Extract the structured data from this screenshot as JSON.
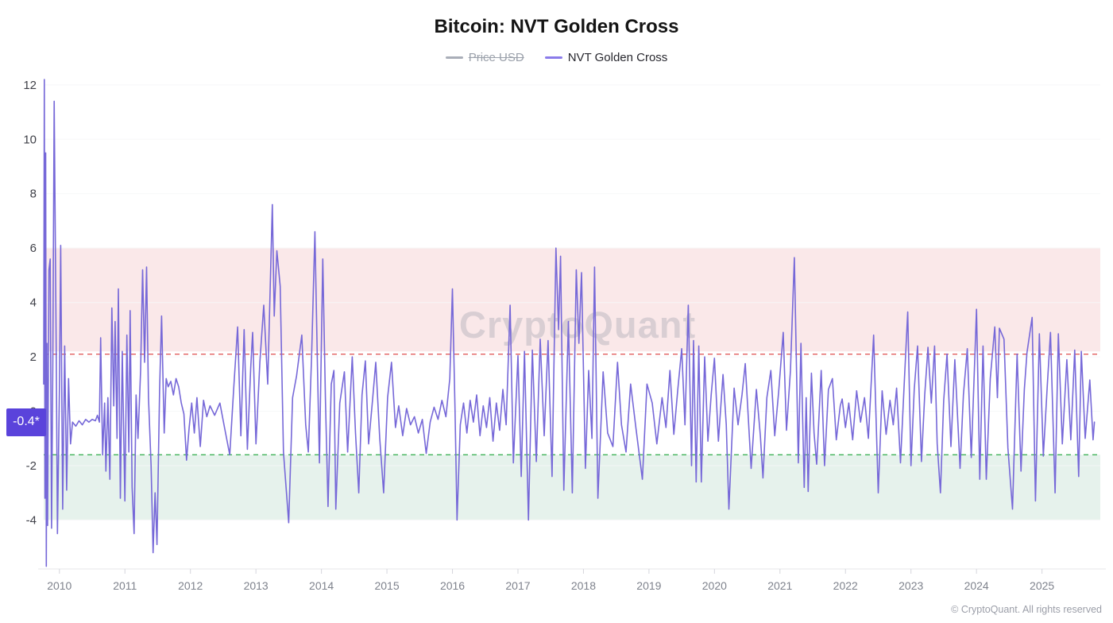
{
  "title": "Bitcoin: NVT Golden Cross",
  "legend": [
    {
      "label": "Price USD",
      "color": "#a9aeb8",
      "disabled": true
    },
    {
      "label": "NVT Golden Cross",
      "color": "#8a7bea",
      "disabled": false
    }
  ],
  "watermark": "CryptoQuant",
  "copyright": "© CryptoQuant. All rights reserved",
  "current_value_label": "-0.4*",
  "chart_data": {
    "type": "line",
    "title": "Bitcoin: NVT Golden Cross",
    "series_name": "NVT Golden Cross",
    "line_color": "#7668d8",
    "xlim": [
      2009.76,
      2025.89
    ],
    "ylim": [
      -5.8,
      12.2
    ],
    "y_ticks": [
      12,
      10,
      8,
      6,
      4,
      2,
      0,
      -2,
      -4
    ],
    "x_ticks": [
      2010,
      2011,
      2012,
      2013,
      2014,
      2015,
      2016,
      2017,
      2018,
      2019,
      2020,
      2021,
      2022,
      2023,
      2024,
      2025
    ],
    "grid": true,
    "legend_position": "top",
    "zones": [
      {
        "name": "overbought-zone",
        "from": 2.2,
        "to": 6.0,
        "color": "#fae8e9"
      },
      {
        "name": "oversold-zone",
        "from": -4.0,
        "to": -1.6,
        "color": "#e6f2ec"
      }
    ],
    "thresholds": [
      {
        "name": "upper-threshold",
        "value": 2.1,
        "color": "#e25c5c"
      },
      {
        "name": "lower-threshold",
        "value": -1.6,
        "color": "#3eb257"
      }
    ],
    "last_value": -0.4,
    "points": [
      [
        2009.76,
        1.0
      ],
      [
        2009.77,
        12.2
      ],
      [
        2009.78,
        -3.2
      ],
      [
        2009.79,
        9.5
      ],
      [
        2009.8,
        -5.7
      ],
      [
        2009.81,
        2.5
      ],
      [
        2009.82,
        -4.2
      ],
      [
        2009.84,
        5.2
      ],
      [
        2009.86,
        5.6
      ],
      [
        2009.88,
        -4.3
      ],
      [
        2009.9,
        1.8
      ],
      [
        2009.92,
        11.4
      ],
      [
        2009.95,
        2.5
      ],
      [
        2009.97,
        -4.5
      ],
      [
        2010.0,
        0.8
      ],
      [
        2010.02,
        6.1
      ],
      [
        2010.05,
        -3.6
      ],
      [
        2010.08,
        2.4
      ],
      [
        2010.11,
        -2.9
      ],
      [
        2010.14,
        1.2
      ],
      [
        2010.17,
        -1.2
      ],
      [
        2010.2,
        -0.4
      ],
      [
        2010.25,
        -0.55
      ],
      [
        2010.3,
        -0.35
      ],
      [
        2010.35,
        -0.5
      ],
      [
        2010.4,
        -0.3
      ],
      [
        2010.45,
        -0.4
      ],
      [
        2010.5,
        -0.3
      ],
      [
        2010.55,
        -0.35
      ],
      [
        2010.58,
        -0.15
      ],
      [
        2010.61,
        -0.4
      ],
      [
        2010.63,
        2.7
      ],
      [
        2010.66,
        -1.6
      ],
      [
        2010.69,
        0.3
      ],
      [
        2010.71,
        -2.2
      ],
      [
        2010.74,
        0.5
      ],
      [
        2010.77,
        -2.5
      ],
      [
        2010.8,
        3.8
      ],
      [
        2010.83,
        0.2
      ],
      [
        2010.85,
        3.3
      ],
      [
        2010.88,
        -1.0
      ],
      [
        2010.9,
        4.5
      ],
      [
        2010.93,
        -3.2
      ],
      [
        2010.96,
        2.2
      ],
      [
        2011.0,
        -3.3
      ],
      [
        2011.03,
        2.8
      ],
      [
        2011.06,
        -1.5
      ],
      [
        2011.08,
        3.7
      ],
      [
        2011.11,
        -2.8
      ],
      [
        2011.14,
        -4.5
      ],
      [
        2011.17,
        0.6
      ],
      [
        2011.2,
        -1.0
      ],
      [
        2011.24,
        1.5
      ],
      [
        2011.27,
        5.2
      ],
      [
        2011.3,
        1.8
      ],
      [
        2011.33,
        5.3
      ],
      [
        2011.36,
        0.5
      ],
      [
        2011.4,
        -2.0
      ],
      [
        2011.43,
        -5.2
      ],
      [
        2011.46,
        -3.0
      ],
      [
        2011.49,
        -4.9
      ],
      [
        2011.53,
        0.8
      ],
      [
        2011.56,
        3.5
      ],
      [
        2011.6,
        -0.8
      ],
      [
        2011.63,
        1.2
      ],
      [
        2011.66,
        0.9
      ],
      [
        2011.7,
        1.1
      ],
      [
        2011.74,
        0.6
      ],
      [
        2011.78,
        1.2
      ],
      [
        2011.82,
        0.9
      ],
      [
        2011.86,
        0.3
      ],
      [
        2011.9,
        -0.1
      ],
      [
        2011.94,
        -1.8
      ],
      [
        2011.98,
        -0.6
      ],
      [
        2012.02,
        0.3
      ],
      [
        2012.06,
        -0.8
      ],
      [
        2012.1,
        0.5
      ],
      [
        2012.15,
        -1.3
      ],
      [
        2012.2,
        0.4
      ],
      [
        2012.25,
        -0.2
      ],
      [
        2012.3,
        0.2
      ],
      [
        2012.37,
        -0.15
      ],
      [
        2012.45,
        0.3
      ],
      [
        2012.52,
        -0.6
      ],
      [
        2012.6,
        -1.6
      ],
      [
        2012.66,
        0.8
      ],
      [
        2012.72,
        3.1
      ],
      [
        2012.77,
        -0.9
      ],
      [
        2012.82,
        3.0
      ],
      [
        2012.87,
        -1.4
      ],
      [
        2012.92,
        1.6
      ],
      [
        2012.95,
        2.9
      ],
      [
        2013.0,
        -1.2
      ],
      [
        2013.06,
        1.8
      ],
      [
        2013.12,
        3.9
      ],
      [
        2013.18,
        1.0
      ],
      [
        2013.25,
        7.6
      ],
      [
        2013.28,
        3.5
      ],
      [
        2013.32,
        5.9
      ],
      [
        2013.37,
        4.6
      ],
      [
        2013.42,
        -1.5
      ],
      [
        2013.5,
        -4.1
      ],
      [
        2013.56,
        0.5
      ],
      [
        2013.62,
        1.3
      ],
      [
        2013.7,
        2.8
      ],
      [
        2013.76,
        -0.5
      ],
      [
        2013.8,
        -1.5
      ],
      [
        2013.85,
        2.0
      ],
      [
        2013.9,
        6.6
      ],
      [
        2013.94,
        1.5
      ],
      [
        2013.97,
        -1.9
      ],
      [
        2014.02,
        5.6
      ],
      [
        2014.06,
        0.5
      ],
      [
        2014.1,
        -3.5
      ],
      [
        2014.15,
        1.0
      ],
      [
        2014.19,
        1.5
      ],
      [
        2014.22,
        -3.6
      ],
      [
        2014.28,
        0.3
      ],
      [
        2014.35,
        1.45
      ],
      [
        2014.4,
        -1.5
      ],
      [
        2014.47,
        2.0
      ],
      [
        2014.52,
        -0.8
      ],
      [
        2014.57,
        -3.0
      ],
      [
        2014.62,
        0.6
      ],
      [
        2014.67,
        1.85
      ],
      [
        2014.72,
        -1.2
      ],
      [
        2014.78,
        0.4
      ],
      [
        2014.83,
        1.8
      ],
      [
        2014.89,
        -1.0
      ],
      [
        2014.95,
        -3.0
      ],
      [
        2015.01,
        0.5
      ],
      [
        2015.07,
        1.8
      ],
      [
        2015.13,
        -0.6
      ],
      [
        2015.18,
        0.2
      ],
      [
        2015.24,
        -0.9
      ],
      [
        2015.3,
        0.1
      ],
      [
        2015.36,
        -0.5
      ],
      [
        2015.42,
        -0.2
      ],
      [
        2015.48,
        -0.8
      ],
      [
        2015.54,
        -0.3
      ],
      [
        2015.6,
        -1.55
      ],
      [
        2015.66,
        -0.4
      ],
      [
        2015.72,
        0.15
      ],
      [
        2015.78,
        -0.3
      ],
      [
        2015.84,
        0.4
      ],
      [
        2015.9,
        -0.2
      ],
      [
        2015.96,
        1.2
      ],
      [
        2016.0,
        4.5
      ],
      [
        2016.04,
        0.0
      ],
      [
        2016.07,
        -4.0
      ],
      [
        2016.12,
        -0.5
      ],
      [
        2016.17,
        0.3
      ],
      [
        2016.22,
        -0.8
      ],
      [
        2016.27,
        0.4
      ],
      [
        2016.32,
        -0.4
      ],
      [
        2016.37,
        0.6
      ],
      [
        2016.42,
        -0.9
      ],
      [
        2016.47,
        0.2
      ],
      [
        2016.52,
        -0.6
      ],
      [
        2016.57,
        0.5
      ],
      [
        2016.62,
        -1.1
      ],
      [
        2016.67,
        0.3
      ],
      [
        2016.72,
        -0.7
      ],
      [
        2016.77,
        0.8
      ],
      [
        2016.82,
        -0.5
      ],
      [
        2016.88,
        3.9
      ],
      [
        2016.93,
        -1.9
      ],
      [
        2017.0,
        2.05
      ],
      [
        2017.05,
        -2.4
      ],
      [
        2017.1,
        2.2
      ],
      [
        2017.16,
        -4.0
      ],
      [
        2017.22,
        2.25
      ],
      [
        2017.28,
        -1.85
      ],
      [
        2017.34,
        2.65
      ],
      [
        2017.4,
        -0.9
      ],
      [
        2017.46,
        2.6
      ],
      [
        2017.52,
        -2.4
      ],
      [
        2017.58,
        6.0
      ],
      [
        2017.62,
        3.0
      ],
      [
        2017.65,
        5.7
      ],
      [
        2017.7,
        -2.9
      ],
      [
        2017.77,
        3.3
      ],
      [
        2017.83,
        -3.0
      ],
      [
        2017.89,
        5.2
      ],
      [
        2017.93,
        2.5
      ],
      [
        2017.97,
        5.1
      ],
      [
        2018.03,
        -2.1
      ],
      [
        2018.08,
        1.5
      ],
      [
        2018.13,
        -1.0
      ],
      [
        2018.17,
        5.3
      ],
      [
        2018.22,
        -3.2
      ],
      [
        2018.3,
        1.45
      ],
      [
        2018.37,
        -0.8
      ],
      [
        2018.45,
        -1.3
      ],
      [
        2018.52,
        1.8
      ],
      [
        2018.58,
        -0.5
      ],
      [
        2018.65,
        -1.5
      ],
      [
        2018.72,
        1.0
      ],
      [
        2018.8,
        -0.6
      ],
      [
        2018.9,
        -2.5
      ],
      [
        2018.97,
        1.0
      ],
      [
        2019.05,
        0.3
      ],
      [
        2019.12,
        -1.2
      ],
      [
        2019.2,
        0.5
      ],
      [
        2019.26,
        -0.6
      ],
      [
        2019.32,
        1.5
      ],
      [
        2019.38,
        -0.85
      ],
      [
        2019.44,
        0.8
      ],
      [
        2019.5,
        2.3
      ],
      [
        2019.55,
        -0.5
      ],
      [
        2019.6,
        3.9
      ],
      [
        2019.65,
        -2.0
      ],
      [
        2019.68,
        2.6
      ],
      [
        2019.72,
        -2.6
      ],
      [
        2019.76,
        2.4
      ],
      [
        2019.8,
        -2.6
      ],
      [
        2019.85,
        2.0
      ],
      [
        2019.9,
        -1.1
      ],
      [
        2019.95,
        0.6
      ],
      [
        2020.0,
        1.95
      ],
      [
        2020.06,
        -1.1
      ],
      [
        2020.13,
        1.35
      ],
      [
        2020.18,
        -0.5
      ],
      [
        2020.22,
        -3.6
      ],
      [
        2020.3,
        0.85
      ],
      [
        2020.36,
        -0.5
      ],
      [
        2020.42,
        0.6
      ],
      [
        2020.47,
        1.75
      ],
      [
        2020.56,
        -2.1
      ],
      [
        2020.64,
        0.8
      ],
      [
        2020.7,
        -0.9
      ],
      [
        2020.74,
        -2.45
      ],
      [
        2020.8,
        0.5
      ],
      [
        2020.86,
        1.5
      ],
      [
        2020.92,
        -0.9
      ],
      [
        2020.98,
        0.7
      ],
      [
        2021.05,
        2.9
      ],
      [
        2021.1,
        -0.7
      ],
      [
        2021.16,
        1.5
      ],
      [
        2021.22,
        5.65
      ],
      [
        2021.28,
        -1.9
      ],
      [
        2021.32,
        2.5
      ],
      [
        2021.37,
        -2.8
      ],
      [
        2021.4,
        0.5
      ],
      [
        2021.43,
        -2.95
      ],
      [
        2021.48,
        1.4
      ],
      [
        2021.52,
        -0.8
      ],
      [
        2021.56,
        -1.95
      ],
      [
        2021.63,
        1.5
      ],
      [
        2021.68,
        -2.0
      ],
      [
        2021.74,
        0.8
      ],
      [
        2021.8,
        1.2
      ],
      [
        2021.86,
        -1.05
      ],
      [
        2021.92,
        0.2
      ],
      [
        2021.95,
        0.45
      ],
      [
        2022.0,
        -0.6
      ],
      [
        2022.05,
        0.3
      ],
      [
        2022.11,
        -1.05
      ],
      [
        2022.17,
        0.75
      ],
      [
        2022.23,
        -0.4
      ],
      [
        2022.29,
        0.5
      ],
      [
        2022.35,
        -1.0
      ],
      [
        2022.43,
        2.8
      ],
      [
        2022.5,
        -3.0
      ],
      [
        2022.56,
        0.75
      ],
      [
        2022.62,
        -0.85
      ],
      [
        2022.68,
        0.4
      ],
      [
        2022.73,
        -0.5
      ],
      [
        2022.78,
        0.85
      ],
      [
        2022.84,
        -1.9
      ],
      [
        2022.9,
        1.2
      ],
      [
        2022.95,
        3.65
      ],
      [
        2023.0,
        -2.0
      ],
      [
        2023.05,
        0.8
      ],
      [
        2023.1,
        2.4
      ],
      [
        2023.16,
        -1.85
      ],
      [
        2023.21,
        0.6
      ],
      [
        2023.26,
        2.35
      ],
      [
        2023.31,
        0.3
      ],
      [
        2023.36,
        2.4
      ],
      [
        2023.4,
        -1.2
      ],
      [
        2023.45,
        -3.0
      ],
      [
        2023.5,
        0.4
      ],
      [
        2023.55,
        2.1
      ],
      [
        2023.61,
        -1.3
      ],
      [
        2023.67,
        1.9
      ],
      [
        2023.75,
        -2.1
      ],
      [
        2023.8,
        0.6
      ],
      [
        2023.86,
        2.3
      ],
      [
        2023.92,
        -1.7
      ],
      [
        2024.0,
        3.75
      ],
      [
        2024.05,
        -2.5
      ],
      [
        2024.1,
        2.4
      ],
      [
        2024.15,
        -2.5
      ],
      [
        2024.21,
        1.2
      ],
      [
        2024.28,
        3.1
      ],
      [
        2024.32,
        0.5
      ],
      [
        2024.35,
        3.05
      ],
      [
        2024.42,
        2.65
      ],
      [
        2024.48,
        -1.35
      ],
      [
        2024.55,
        -3.6
      ],
      [
        2024.62,
        2.1
      ],
      [
        2024.68,
        -2.2
      ],
      [
        2024.73,
        0.8
      ],
      [
        2024.77,
        2.15
      ],
      [
        2024.85,
        3.45
      ],
      [
        2024.9,
        -3.3
      ],
      [
        2024.96,
        2.85
      ],
      [
        2025.02,
        -1.65
      ],
      [
        2025.08,
        0.9
      ],
      [
        2025.13,
        2.9
      ],
      [
        2025.2,
        -3.0
      ],
      [
        2025.25,
        2.85
      ],
      [
        2025.31,
        -1.2
      ],
      [
        2025.38,
        1.9
      ],
      [
        2025.44,
        -1.05
      ],
      [
        2025.5,
        2.25
      ],
      [
        2025.56,
        -2.4
      ],
      [
        2025.6,
        2.2
      ],
      [
        2025.66,
        -1.0
      ],
      [
        2025.73,
        1.15
      ],
      [
        2025.78,
        -1.05
      ],
      [
        2025.8,
        -0.4
      ]
    ]
  }
}
